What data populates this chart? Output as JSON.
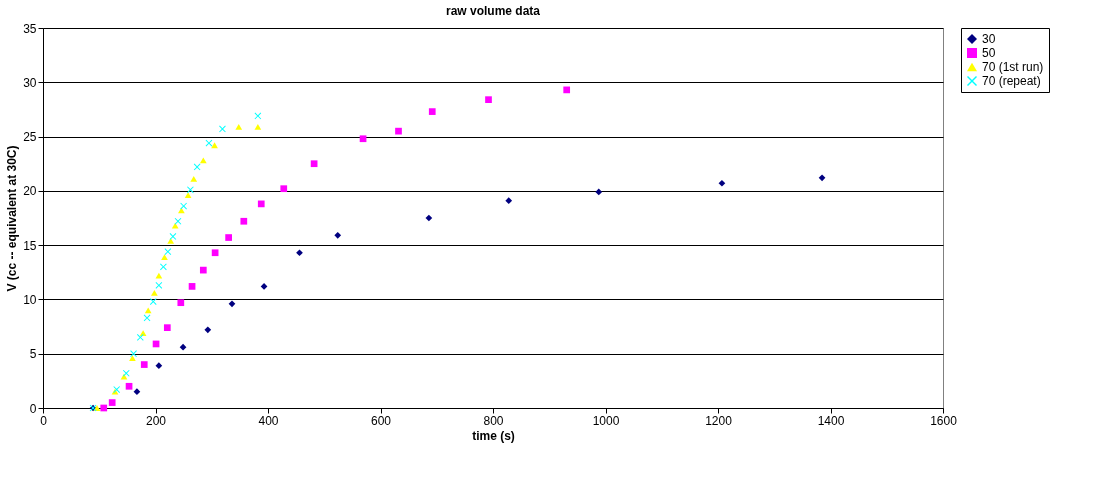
{
  "chart_data": {
    "type": "scatter",
    "title": "raw volume data",
    "xlabel": "time (s)",
    "ylabel": "V (cc -- equivalent at 30C)",
    "xlim": [
      0,
      1600
    ],
    "xticks": [
      0,
      200,
      400,
      600,
      800,
      1000,
      1200,
      1400,
      1600
    ],
    "ylim": [
      0,
      35
    ],
    "yticks": [
      0,
      5,
      10,
      15,
      20,
      25,
      30,
      35
    ],
    "grid": "y",
    "legend": "right",
    "series": [
      {
        "name": "30",
        "color": "#000080",
        "marker": "diamond",
        "x": [
          89,
          167,
          206,
          249,
          293,
          336,
          393,
          456,
          524,
          686,
          828,
          988,
          1207,
          1385
        ],
        "values": [
          0,
          1.5,
          3.9,
          5.6,
          7.2,
          9.6,
          11.2,
          14.3,
          15.9,
          17.5,
          19.1,
          19.9,
          20.7,
          21.2
        ]
      },
      {
        "name": "50",
        "color": "#ff00ff",
        "marker": "square",
        "x": [
          108,
          123,
          153,
          180,
          201,
          221,
          245,
          265,
          285,
          306,
          330,
          357,
          388,
          428,
          482,
          569,
          632,
          692,
          792,
          931
        ],
        "values": [
          0,
          0.5,
          2.0,
          4.0,
          5.9,
          7.4,
          9.7,
          11.2,
          12.7,
          14.3,
          15.7,
          17.2,
          18.8,
          20.2,
          22.5,
          24.8,
          25.5,
          27.3,
          28.4,
          29.3
        ]
      },
      {
        "name": "70 (1st run)",
        "color": "#ffff00",
        "marker": "triangle",
        "x": [
          96,
          128,
          144,
          159,
          178,
          187,
          198,
          206,
          216,
          227,
          235,
          246,
          258,
          268,
          285,
          305,
          348,
          382
        ],
        "values": [
          0,
          1.5,
          2.9,
          4.6,
          6.9,
          9.0,
          10.6,
          12.2,
          13.9,
          15.4,
          16.8,
          18.2,
          19.6,
          21.1,
          22.8,
          24.2,
          25.9,
          25.9
        ]
      },
      {
        "name": "70 (repeat)",
        "color": "#00ffff",
        "marker": "cross",
        "x": [
          89,
          131,
          148,
          161,
          173,
          185,
          196,
          206,
          214,
          222,
          231,
          240,
          250,
          262,
          274,
          295,
          319,
          382
        ],
        "values": [
          0,
          1.7,
          3.2,
          5.0,
          6.5,
          8.3,
          9.8,
          11.3,
          13.0,
          14.4,
          15.8,
          17.2,
          18.6,
          20.1,
          22.2,
          24.4,
          25.7,
          26.9
        ]
      }
    ]
  }
}
